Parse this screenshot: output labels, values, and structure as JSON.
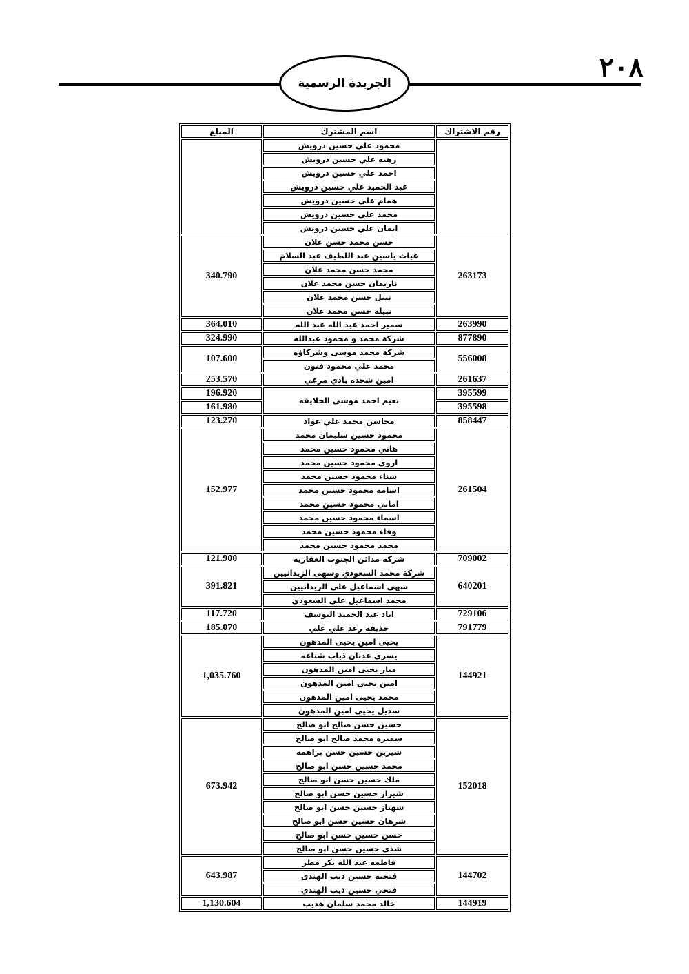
{
  "header": {
    "page_number": "٢٠٨",
    "publication_title": "الجريدة الرسمية"
  },
  "table": {
    "columns": {
      "number": "رقم الاشتراك",
      "name": "اسم المشترك",
      "amount": "المبلغ"
    },
    "groups": [
      {
        "number": "",
        "amount": "",
        "names": [
          "محمود علي حسين درويش",
          "زهيه علي حسين درويش",
          "احمد علي حسين درويش",
          "عبد الحميد علي حسين درويش",
          "همام علي حسين درويش",
          "محمد علي حسين درويش",
          "ايمان علي حسين درويش"
        ]
      },
      {
        "number": "263173",
        "amount": "340.790",
        "names": [
          "حسن محمد حسن علان",
          "غياث ياسين عبد اللطيف عبد السلام",
          "محمد حسن محمد علان",
          "ناريمان حسن محمد علان",
          "نبيل حسن محمد علان",
          "نبيله حسن محمد علان"
        ]
      },
      {
        "number": "263990",
        "amount": "364.010",
        "names": [
          "سمير احمد عبد الله عبد الله"
        ]
      },
      {
        "number": "877890",
        "amount": "324.990",
        "names": [
          "شركة محمد و محمود عبدالله"
        ]
      },
      {
        "number": "556008",
        "amount": "107.600",
        "names": [
          "شركة محمد موسى وشركاؤه",
          "محمد علي محمود فنون"
        ]
      },
      {
        "number": "261637",
        "amount": "253.570",
        "names": [
          "امين شحده بادي مرعي"
        ]
      },
      {
        "names": [
          "نعيم احمد موسى الحلايقه"
        ],
        "entries": [
          {
            "number": "395599",
            "amount": "196.920"
          },
          {
            "number": "395598",
            "amount": "161.980"
          }
        ]
      },
      {
        "number": "858447",
        "amount": "123.270",
        "names": [
          "محاسن محمد علي عواد"
        ]
      },
      {
        "number": "261504",
        "amount": "152.977",
        "names": [
          "محمود حسين سليمان محمد",
          "هاني محمود حسين محمد",
          "اروى محمود حسين محمد",
          "سناء محمود حسين محمد",
          "اسامه محمود حسين محمد",
          "اماني محمود حسين محمد",
          "اسماء محمود حسين محمد",
          "وفاء محمود حسين محمد",
          "محمد محمود حسين محمد"
        ]
      },
      {
        "number": "709002",
        "amount": "121.900",
        "names": [
          "شركة مدائن الجنوب العقارية"
        ]
      },
      {
        "number": "640201",
        "amount": "391.821",
        "names": [
          "شركة محمد السعودي وسهى الزيدانيين",
          "سهى اسماعيل علي الزيدانيين",
          "محمد اسماعيل علي السعودي"
        ]
      },
      {
        "number": "729106",
        "amount": "117.720",
        "names": [
          "اياد عبد الحميد اليوسف"
        ]
      },
      {
        "number": "791779",
        "amount": "185.070",
        "names": [
          "حذيفة رعد علي علي"
        ]
      },
      {
        "number": "144921",
        "amount": "1,035.760",
        "names": [
          "يحيى امين يحيى المدهون",
          "يسرى عدنان ذياب شناعه",
          "ميار يحيى امين المدهون",
          "امين يحيى امين المدهون",
          "محمد يحيى امين المدهون",
          "سديل يحيى امين المدهون"
        ]
      },
      {
        "number": "152018",
        "amount": "673.942",
        "names": [
          "حسين حسن صالح ابو صالح",
          "سميره محمد صالح ابو صالح",
          "شيرين حسين حسن براهمه",
          "محمد حسين حسن ابو صالح",
          "ملك حسين حسن ابو صالح",
          "شيراز حسين حسن ابو صالح",
          "شهناز حسين حسن ابو صالح",
          "شرهان حسين حسن ابو صالح",
          "حسن حسين حسن ابو صالح",
          "شذى حسين حسن ابو صالح"
        ]
      },
      {
        "number": "144702",
        "amount": "643.987",
        "names": [
          "فاطمه عبد الله بكر مطر",
          "فتحيه حسين ديب الهندى",
          "فتحي حسين ذيب الهندي"
        ]
      },
      {
        "number": "144919",
        "amount": "1,130.604",
        "names": [
          "خالد محمد سلمان هديب"
        ]
      }
    ]
  }
}
